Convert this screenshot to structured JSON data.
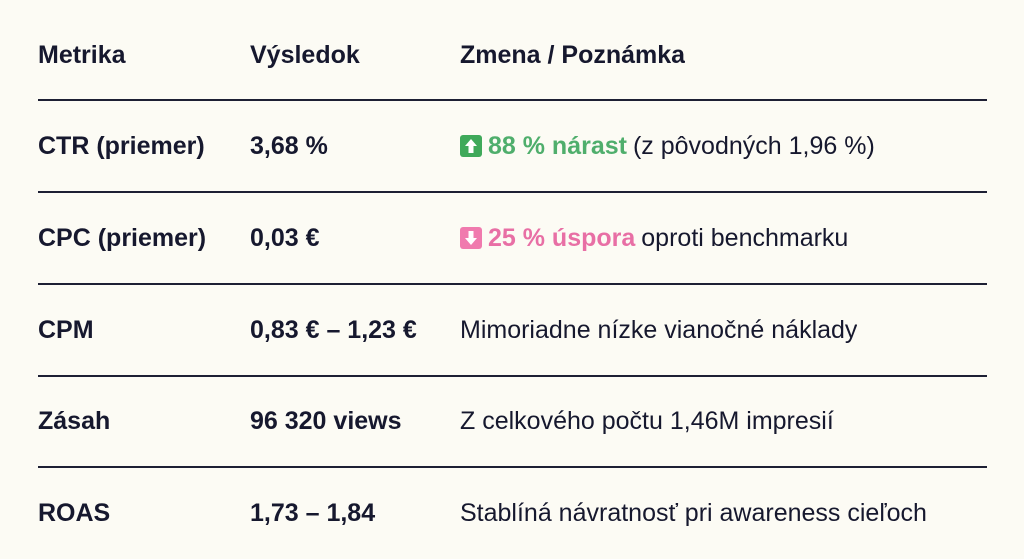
{
  "table": {
    "header": [
      "Metrika",
      "Výsledok",
      "Zmena / Poznámka"
    ],
    "rows": [
      {
        "metric": "CTR (priemer)",
        "result": "3,68 %",
        "note": {
          "highlight": "88 % nárast",
          "text": "(z pôvodných 1,96 %)"
        }
      },
      {
        "metric": "CPC (priemer)",
        "result": "0,03 €",
        "note": {
          "highlight": "25 % úspora",
          "text": "oproti benchmarku"
        }
      },
      {
        "metric": "CPM",
        "result": "0,83 € – 1,23 €",
        "note": {
          "text": "Mimoriadne nízke vianočné náklady"
        }
      },
      {
        "metric": "Zásah",
        "result": "96 320 views",
        "note": {
          "text": "Z celkového počtu 1,46M impresií"
        }
      },
      {
        "metric": "ROAS",
        "result": "1,73 – 1,84",
        "note": {
          "text": "Stablíná návratnosť pri awareness cieľoch"
        }
      }
    ]
  }
}
